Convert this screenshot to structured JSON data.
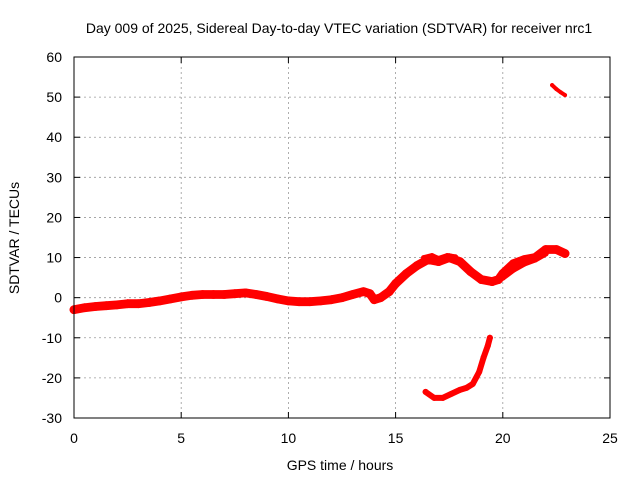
{
  "chart_data": {
    "type": "scatter",
    "title": "Day 009 of 2025, Sidereal Day-to-day VTEC variation (SDTVAR) for receiver nrc1",
    "xlabel": "GPS time / hours",
    "ylabel": "SDTVAR / TECUs",
    "xlim": [
      0,
      25
    ],
    "ylim": [
      -30,
      60
    ],
    "xticks": [
      0,
      5,
      10,
      15,
      20,
      25
    ],
    "yticks": [
      -30,
      -20,
      -10,
      0,
      10,
      20,
      30,
      40,
      50,
      60
    ],
    "xtick_labels": [
      "0",
      "5",
      "10",
      "15",
      "20",
      "25"
    ],
    "ytick_labels": [
      "-30",
      "-20",
      "-10",
      "0",
      "10",
      "20",
      "30",
      "40",
      "50",
      "60"
    ],
    "grid": true,
    "legend": "none",
    "series_color": "#ff0000",
    "series": [
      {
        "name": "main band",
        "band_width": 2.2,
        "x": [
          0.0,
          0.5,
          1.0,
          1.5,
          2.0,
          2.5,
          3.0,
          3.5,
          4.0,
          4.5,
          5.0,
          5.5,
          6.0,
          6.5,
          7.0,
          7.5,
          8.0,
          8.5,
          9.0,
          9.5,
          10.0,
          10.5,
          11.0,
          11.5,
          12.0,
          12.5,
          13.0,
          13.5,
          13.8,
          14.0,
          14.3,
          14.7,
          15.0,
          15.5,
          16.0,
          16.5,
          17.0,
          17.5,
          18.0,
          18.5,
          19.0,
          19.5,
          19.8,
          20.0,
          20.5,
          21.0,
          21.5,
          22.0,
          22.5,
          22.9
        ],
        "y": [
          -3.0,
          -2.5,
          -2.2,
          -2.0,
          -1.8,
          -1.5,
          -1.5,
          -1.2,
          -0.8,
          -0.3,
          0.2,
          0.6,
          0.8,
          0.8,
          0.8,
          1.0,
          1.2,
          0.8,
          0.3,
          -0.3,
          -0.8,
          -1.0,
          -1.0,
          -0.8,
          -0.5,
          0.0,
          0.8,
          1.5,
          1.0,
          -0.5,
          0.0,
          1.5,
          3.5,
          6.0,
          8.0,
          9.5,
          9.0,
          10.0,
          9.0,
          6.5,
          4.5,
          4.0,
          4.5,
          6.0,
          8.5,
          9.5,
          10.0,
          12.0,
          12.0,
          11.0
        ]
      },
      {
        "name": "upper branch 16.5-17.8h",
        "band_width": 1.2,
        "x": [
          16.3,
          16.7,
          17.0,
          17.4,
          17.8
        ],
        "y": [
          10.0,
          10.5,
          9.8,
          10.5,
          10.2
        ]
      },
      {
        "name": "lower branch 19.5-22h",
        "band_width": 1.5,
        "x": [
          19.6,
          20.0,
          20.5,
          21.0,
          21.5,
          22.0
        ],
        "y": [
          4.0,
          5.0,
          7.0,
          8.5,
          9.5,
          11.0
        ]
      },
      {
        "name": "negative arc",
        "band_width": 1.5,
        "x": [
          16.4,
          16.8,
          17.2,
          17.6,
          18.0,
          18.3,
          18.6,
          18.9,
          19.1,
          19.3,
          19.4
        ],
        "y": [
          -23.5,
          -25.0,
          -25.0,
          -24.0,
          -23.0,
          -22.5,
          -21.5,
          -18.5,
          -15.0,
          -12.0,
          -10.0
        ]
      },
      {
        "name": "high fragment",
        "band_width": 1.0,
        "x": [
          22.3,
          22.5,
          22.7,
          22.9
        ],
        "y": [
          53.0,
          52.0,
          51.2,
          50.5
        ]
      }
    ]
  }
}
